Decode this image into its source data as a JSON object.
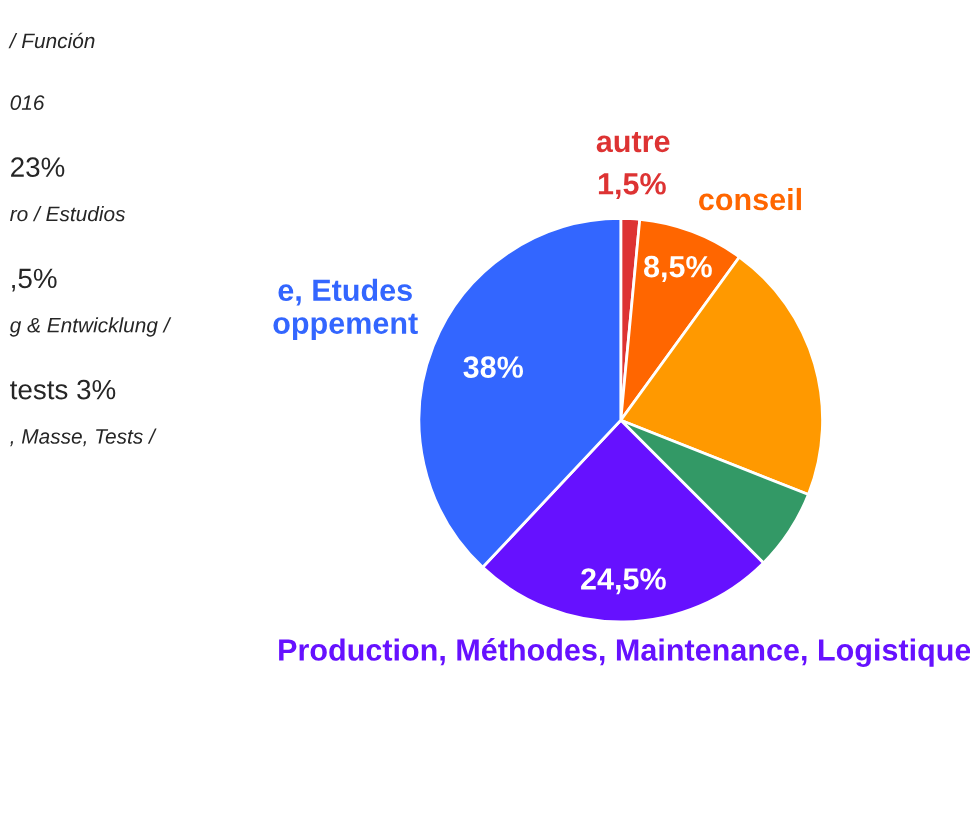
{
  "chart_data": {
    "type": "pie",
    "categories": [
      "autre",
      "conseil",
      null,
      null,
      "Production, Méthodes, Maintenance, Logistique",
      "e, Etudes\noppement"
    ],
    "values": [
      1.5,
      8.5,
      21,
      6.5,
      24.5,
      38
    ],
    "colors": [
      "#dd3333",
      "#ff6600",
      "#ff9900",
      "#339966",
      "#6611ff",
      "#3366ff"
    ],
    "value_labels": [
      "1,5%",
      "8,5%",
      null,
      null,
      "24,5%",
      "38%"
    ],
    "annotations": [
      "/ Función",
      "016",
      "23%",
      "ro / Estudios",
      ",5%",
      "g & Entwicklung /",
      "tests 3%",
      ", Masse, Tests /"
    ]
  }
}
